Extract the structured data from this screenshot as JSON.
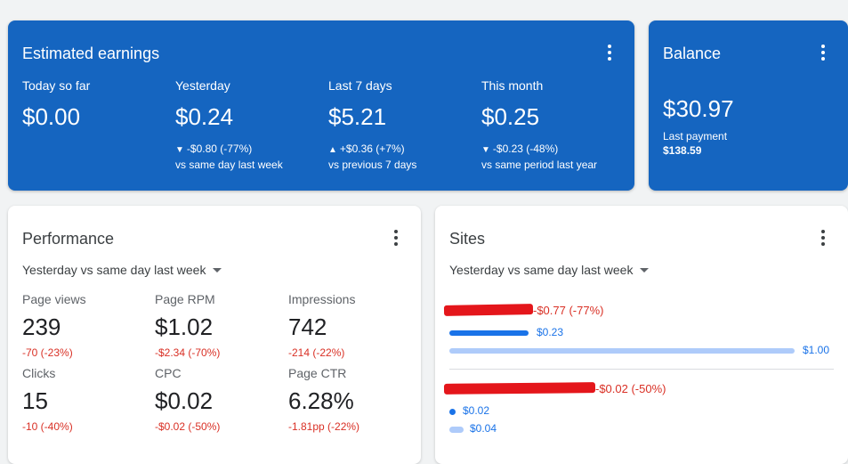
{
  "earnings": {
    "title": "Estimated earnings",
    "columns": [
      {
        "label": "Today so far",
        "value": "$0.00",
        "arrow": "",
        "change": "",
        "compare": ""
      },
      {
        "label": "Yesterday",
        "value": "$0.24",
        "arrow": "▼",
        "change": "-$0.80 (-77%)",
        "compare": "vs same day last week"
      },
      {
        "label": "Last 7 days",
        "value": "$5.21",
        "arrow": "▲",
        "change": "+$0.36 (+7%)",
        "compare": "vs previous 7 days"
      },
      {
        "label": "This month",
        "value": "$0.25",
        "arrow": "▼",
        "change": "-$0.23 (-48%)",
        "compare": "vs same period last year"
      }
    ]
  },
  "balance": {
    "title": "Balance",
    "value": "$30.97",
    "last_payment_label": "Last payment",
    "last_payment_value": "$138.59"
  },
  "performance": {
    "title": "Performance",
    "period": "Yesterday vs same day last week",
    "metrics": [
      {
        "label": "Page views",
        "value": "239",
        "change": "-70 (-23%)"
      },
      {
        "label": "Page RPM",
        "value": "$1.02",
        "change": "-$2.34 (-70%)"
      },
      {
        "label": "Impressions",
        "value": "742",
        "change": "-214 (-22%)"
      },
      {
        "label": "Clicks",
        "value": "15",
        "change": "-10 (-40%)"
      },
      {
        "label": "CPC",
        "value": "$0.02",
        "change": "-$0.02 (-50%)"
      },
      {
        "label": "Page CTR",
        "value": "6.28%",
        "change": "-1.81pp (-22%)"
      }
    ]
  },
  "sites": {
    "title": "Sites",
    "period": "Yesterday vs same day last week",
    "items": [
      {
        "change": "-$0.77 (-77%)",
        "current": "$0.23",
        "previous": "$1.00",
        "current_fraction": 0.23,
        "previous_fraction": 1.0
      },
      {
        "change": "-$0.02 (-50%)",
        "current": "$0.02",
        "previous": "$0.04",
        "current_fraction": 0.02,
        "previous_fraction": 0.04
      }
    ]
  },
  "colors": {
    "brand_blue": "#1565c0",
    "negative_red": "#d93025",
    "bar_dark": "#1a73e8",
    "bar_light": "#aecbfa"
  }
}
